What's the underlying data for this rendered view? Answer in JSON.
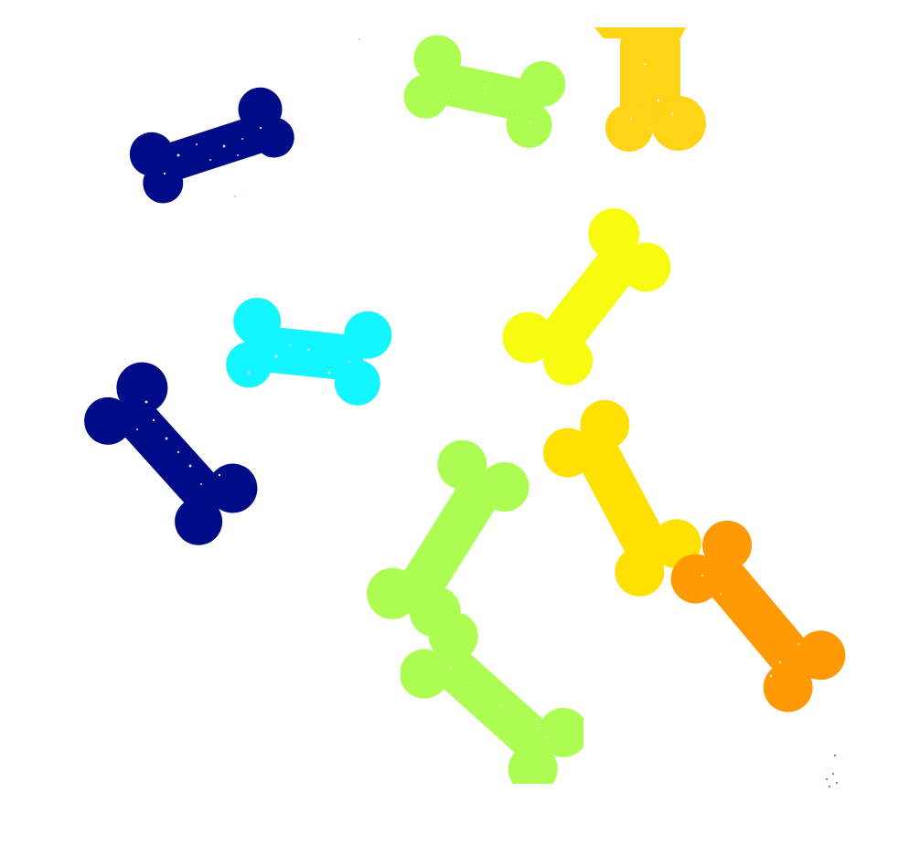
{
  "scene": {
    "background": "#ffffff"
  },
  "colors": {
    "navy": "#000b87",
    "cyan": "#14f6ff",
    "lime": "#acfc51",
    "yellow": "#f7fb10",
    "gold": "#ffe000",
    "amber": "#ffd316",
    "orange": "#ff9a05"
  },
  "objects": [
    {
      "name": "bone-navy-top-left",
      "color": "navy"
    },
    {
      "name": "bone-navy-middle-left",
      "color": "navy"
    },
    {
      "name": "bone-cyan-center-left",
      "color": "cyan"
    },
    {
      "name": "bone-lime-top-center",
      "color": "lime"
    },
    {
      "name": "bone-amber-top-right",
      "color": "amber"
    },
    {
      "name": "bone-yellow-center-right",
      "color": "yellow"
    },
    {
      "name": "bone-gold-lower-right",
      "color": "gold"
    },
    {
      "name": "bone-orange-bottom-right",
      "color": "orange"
    },
    {
      "name": "bone-lime-lower-center",
      "color": "lime"
    },
    {
      "name": "bone-lime-bottom-center",
      "color": "lime"
    }
  ]
}
